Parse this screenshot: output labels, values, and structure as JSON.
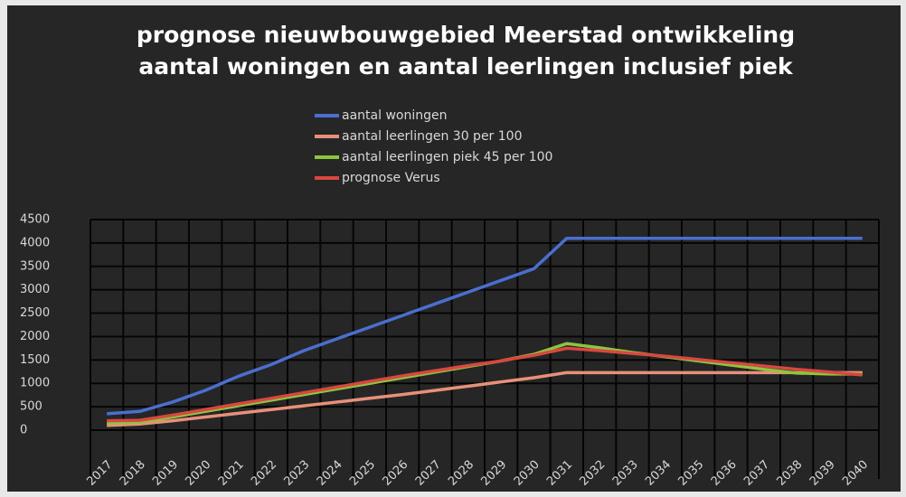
{
  "chart_data": {
    "type": "line",
    "title": [
      "prognose nieuwbouwgebied Meerstad ontwikkeling",
      "aantal woningen en aantal leerlingen inclusief piek"
    ],
    "categories": [
      "2017",
      "2018",
      "2019",
      "2020",
      "2021",
      "2022",
      "2023",
      "2024",
      "2025",
      "2026",
      "2027",
      "2028",
      "2029",
      "2030",
      "2031",
      "2032",
      "2033",
      "2034",
      "2035",
      "2036",
      "2037",
      "2038",
      "2039",
      "2040"
    ],
    "series": [
      {
        "name": "aantal woningen",
        "color": "#4a6fd0",
        "values": [
          350,
          400,
          600,
          850,
          1150,
          1400,
          1700,
          1950,
          2200,
          2450,
          2700,
          2950,
          3200,
          3450,
          4100,
          4100,
          4100,
          4100,
          4100,
          4100,
          4100,
          4100,
          4100,
          4100
        ]
      },
      {
        "name": "aantal leerlingen 30 per 100",
        "color": "#e8907a",
        "values": [
          100,
          130,
          200,
          280,
          360,
          440,
          520,
          600,
          680,
          760,
          850,
          940,
          1030,
          1120,
          1230,
          1230,
          1230,
          1230,
          1230,
          1230,
          1230,
          1230,
          1230,
          1230
        ]
      },
      {
        "name": "aantal leerlingen piek 45 per 100",
        "color": "#8cc63f",
        "values": [
          150,
          170,
          280,
          400,
          520,
          640,
          760,
          880,
          1000,
          1120,
          1240,
          1360,
          1480,
          1620,
          1850,
          1760,
          1660,
          1570,
          1480,
          1390,
          1300,
          1220,
          1200,
          1200
        ]
      },
      {
        "name": "prognose Verus",
        "color": "#d9473f",
        "values": [
          200,
          210,
          320,
          440,
          560,
          680,
          800,
          920,
          1040,
          1160,
          1270,
          1380,
          1480,
          1600,
          1750,
          1700,
          1640,
          1580,
          1510,
          1440,
          1370,
          1300,
          1240,
          1180
        ]
      }
    ],
    "ylim": [
      0,
      4500
    ],
    "yticks": [
      0,
      500,
      1000,
      1500,
      2000,
      2500,
      3000,
      3500,
      4000,
      4500
    ],
    "grid": true
  }
}
